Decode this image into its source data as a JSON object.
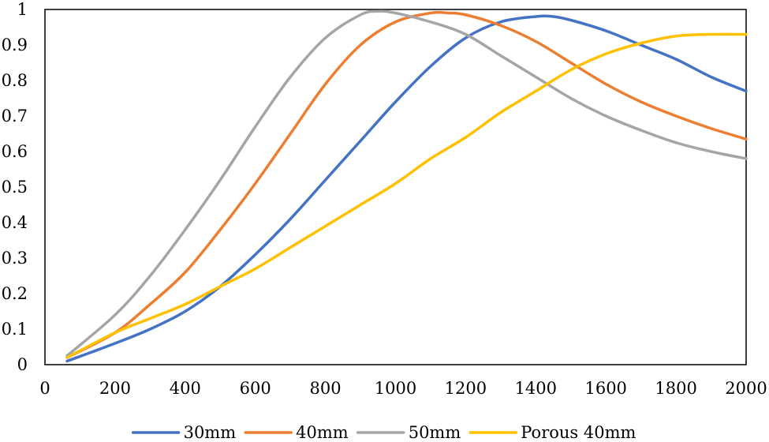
{
  "chart_data": {
    "type": "line",
    "title": "",
    "xlabel": "",
    "ylabel": "",
    "xlim": [
      0,
      2000
    ],
    "ylim": [
      0,
      1
    ],
    "grid": false,
    "legend_position": "bottom",
    "x_ticks": [
      0,
      200,
      400,
      600,
      800,
      1000,
      1200,
      1400,
      1600,
      1800,
      2000
    ],
    "x_tick_labels": [
      "0",
      "200",
      "400",
      "600",
      "800",
      "1000",
      "1200",
      "1400",
      "1600",
      "1800",
      "2000"
    ],
    "y_ticks": [
      0,
      0.1,
      0.2,
      0.3,
      0.4,
      0.5,
      0.6,
      0.7,
      0.8,
      0.9,
      1
    ],
    "y_tick_labels": [
      "0",
      "0.1",
      "0.2",
      "0.3",
      "0.4",
      "0.5",
      "0.6",
      "0.7",
      "0.8",
      "0.9",
      "1"
    ],
    "series": [
      {
        "name": "30mm",
        "color": "#4472C4",
        "x": [
          63,
          200,
          300,
          400,
          500,
          600,
          700,
          800,
          900,
          1000,
          1100,
          1200,
          1300,
          1400,
          1450,
          1500,
          1600,
          1700,
          1800,
          1900,
          2000
        ],
        "y": [
          0.01,
          0.06,
          0.1,
          0.15,
          0.22,
          0.31,
          0.41,
          0.52,
          0.63,
          0.74,
          0.84,
          0.92,
          0.965,
          0.98,
          0.98,
          0.97,
          0.94,
          0.9,
          0.86,
          0.81,
          0.77
        ]
      },
      {
        "name": "40mm",
        "color": "#ED7D31",
        "x": [
          63,
          200,
          300,
          400,
          500,
          600,
          700,
          800,
          900,
          1000,
          1100,
          1150,
          1200,
          1300,
          1400,
          1500,
          1600,
          1700,
          1800,
          1900,
          2000
        ],
        "y": [
          0.02,
          0.09,
          0.17,
          0.26,
          0.38,
          0.51,
          0.65,
          0.79,
          0.9,
          0.965,
          0.99,
          0.99,
          0.985,
          0.955,
          0.91,
          0.85,
          0.79,
          0.74,
          0.7,
          0.665,
          0.635
        ]
      },
      {
        "name": "50mm",
        "color": "#A5A5A5",
        "x": [
          63,
          200,
          300,
          400,
          500,
          600,
          700,
          800,
          900,
          950,
          1000,
          1100,
          1200,
          1300,
          1400,
          1500,
          1600,
          1700,
          1800,
          1900,
          2000
        ],
        "y": [
          0.025,
          0.14,
          0.25,
          0.38,
          0.52,
          0.67,
          0.81,
          0.92,
          0.985,
          0.995,
          0.99,
          0.965,
          0.93,
          0.87,
          0.81,
          0.75,
          0.7,
          0.66,
          0.625,
          0.6,
          0.58
        ]
      },
      {
        "name": "Porous 40mm",
        "color": "#FFC000",
        "x": [
          63,
          200,
          300,
          400,
          500,
          600,
          700,
          800,
          900,
          1000,
          1100,
          1200,
          1300,
          1400,
          1500,
          1600,
          1700,
          1800,
          1900,
          2000
        ],
        "y": [
          0.02,
          0.09,
          0.13,
          0.17,
          0.22,
          0.27,
          0.33,
          0.39,
          0.45,
          0.51,
          0.58,
          0.64,
          0.71,
          0.77,
          0.83,
          0.875,
          0.905,
          0.925,
          0.93,
          0.93
        ]
      }
    ]
  }
}
